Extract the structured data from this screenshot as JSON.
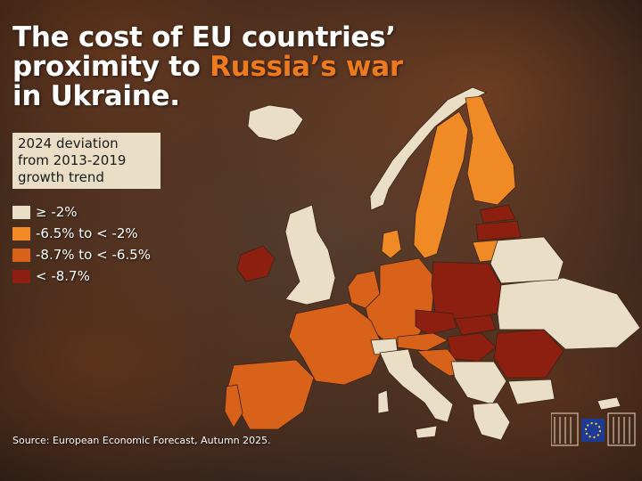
{
  "title": {
    "line1": "The cost of EU countries’",
    "line2_prefix": "proximity to ",
    "line2_accent": "Russia’s war",
    "line3": "in Ukraine."
  },
  "legend_title": [
    "2024 deviation",
    "from 2013-2019",
    "growth trend"
  ],
  "legend": [
    {
      "label": "≥ -2%",
      "color": "#eadfc6"
    },
    {
      "label": "-6.5% to < -2%",
      "color": "#f08a24"
    },
    {
      "label": "-8.7% to < -6.5%",
      "color": "#d9621a"
    },
    {
      "label": "< -8.7%",
      "color": "#8c1f10"
    }
  ],
  "source": "Source: European Economic Forecast, Autumn 2025."
}
